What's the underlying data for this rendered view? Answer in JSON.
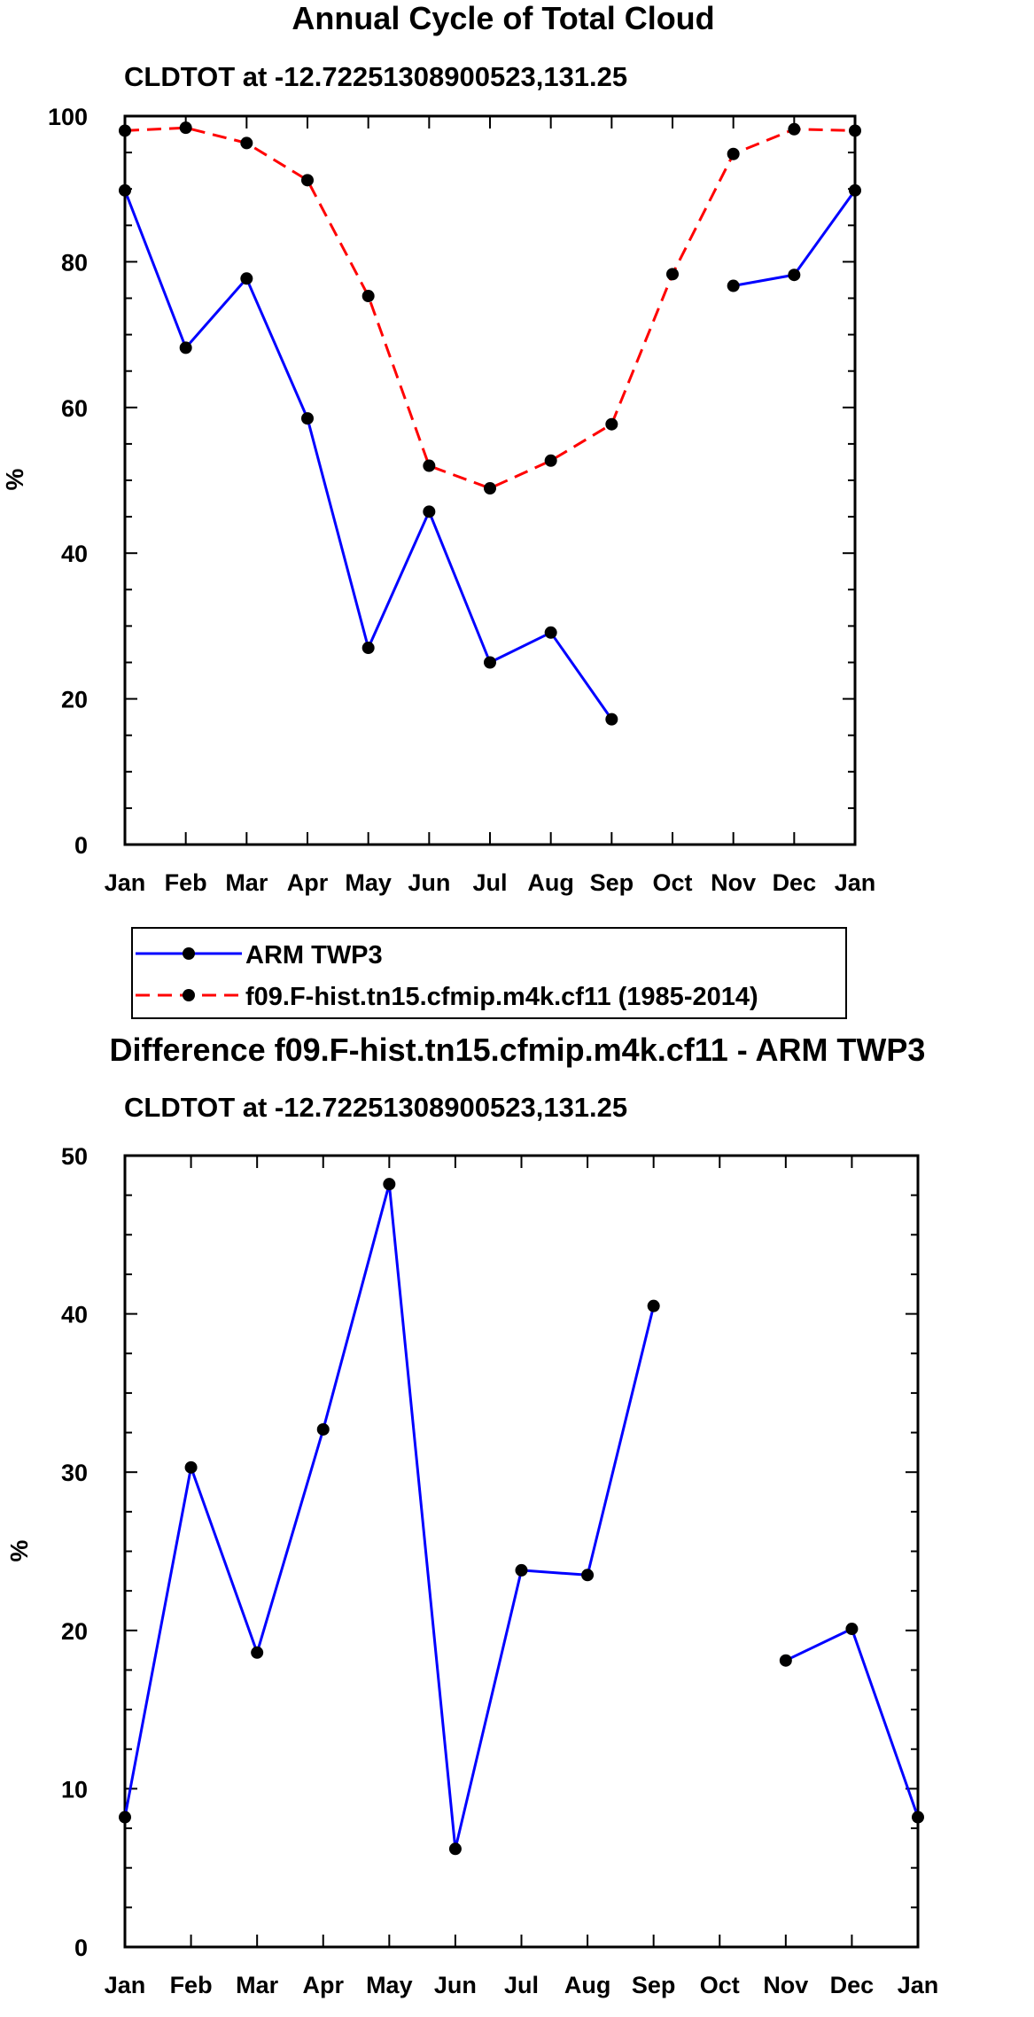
{
  "chart_data": [
    {
      "type": "line",
      "title": "Annual Cycle of Total Cloud",
      "subtitle": "CLDTOT at -12.72251308900523,131.25",
      "ylabel": "%",
      "xlabel": "",
      "ylim": [
        0,
        100
      ],
      "yticks": [
        0,
        20,
        40,
        60,
        80,
        100
      ],
      "categories": [
        "Jan",
        "Feb",
        "Mar",
        "Apr",
        "May",
        "Jun",
        "Jul",
        "Aug",
        "Sep",
        "Oct",
        "Nov",
        "Dec",
        "Jan"
      ],
      "series": [
        {
          "name": "ARM TWP3",
          "color": "#0000ff",
          "dash": "solid",
          "values": [
            89.8,
            68.2,
            77.7,
            58.5,
            27.0,
            45.7,
            25.0,
            29.1,
            17.2,
            null,
            76.7,
            78.2,
            89.8
          ]
        },
        {
          "name": "f09.F-hist.tn15.cfmip.m4k.cf11 (1985-2014)",
          "color": "#ff0000",
          "dash": "dashed",
          "values": [
            98.0,
            98.4,
            96.3,
            91.2,
            75.3,
            52.0,
            48.9,
            52.7,
            57.7,
            78.3,
            94.8,
            98.2,
            98.0
          ]
        }
      ],
      "legend": "below"
    },
    {
      "type": "line",
      "title": "Difference f09.F-hist.tn15.cfmip.m4k.cf11 - ARM TWP3",
      "subtitle": "CLDTOT at -12.72251308900523,131.25",
      "ylabel": "%",
      "xlabel": "",
      "ylim": [
        0,
        50
      ],
      "yticks": [
        0,
        10,
        20,
        30,
        40,
        50
      ],
      "categories": [
        "Jan",
        "Feb",
        "Mar",
        "Apr",
        "May",
        "Jun",
        "Jul",
        "Aug",
        "Sep",
        "Oct",
        "Nov",
        "Dec",
        "Jan"
      ],
      "series": [
        {
          "name": "Difference",
          "color": "#0000ff",
          "dash": "solid",
          "values": [
            8.2,
            30.3,
            18.6,
            32.7,
            48.2,
            6.2,
            23.8,
            23.5,
            40.5,
            null,
            18.1,
            20.1,
            8.2
          ]
        }
      ]
    }
  ]
}
